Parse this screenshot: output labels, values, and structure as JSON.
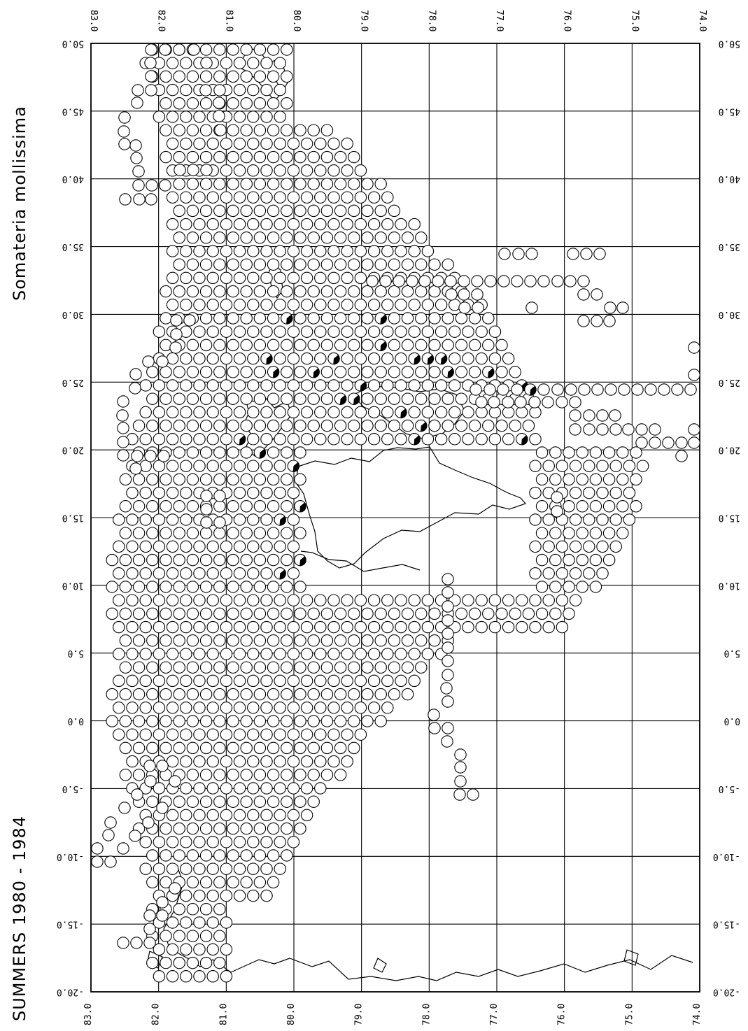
{
  "map": {
    "species": "Somateria  mollissima",
    "period": "SUMMERS  1980  -  1984",
    "longitude_ticks": [
      "83.0",
      "82.0",
      "81.0",
      "80.0",
      "79.0",
      "78.0",
      "77.0",
      "76.0",
      "75.0",
      "74.0"
    ],
    "latitude_ticks": [
      "50.0",
      "45.0",
      "40.0",
      "35.0",
      "30.0",
      "25.0",
      "20.0",
      "15.0",
      "10.0",
      "5.0",
      "0.0",
      "-5.0",
      "-10.0",
      "-15.0",
      "-20.0"
    ],
    "symbols": {
      "empty": "open-circle",
      "presence": "partly-filled-circle"
    },
    "colors": {
      "ink": "#000000",
      "paper": "#ffffff"
    },
    "counts_shown": false
  }
}
